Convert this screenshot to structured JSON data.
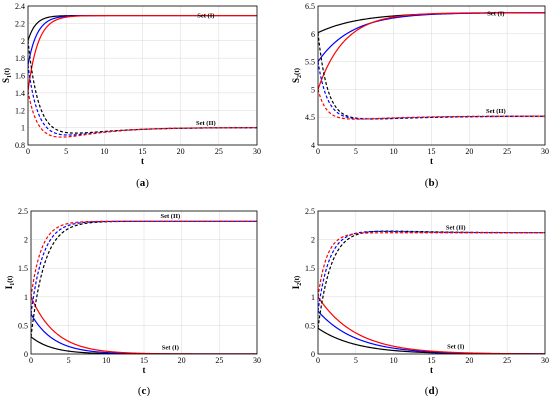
{
  "chart_data": [
    {
      "type": "line",
      "caption": {
        "open": "(",
        "letter": "a",
        "close": ")"
      },
      "xlabel": "t",
      "ylabel": "S",
      "ylabel_sub": "1",
      "ylabel_arg": "(t)",
      "xlim": [
        0,
        30
      ],
      "ylim": [
        0.8,
        2.4
      ],
      "xticks": [
        "0",
        "5",
        "10",
        "15",
        "20",
        "25",
        "30"
      ],
      "yticks": [
        "0.8",
        "1",
        "1.2",
        "1.4",
        "1.6",
        "1.8",
        "2",
        "2.2",
        "2.4"
      ],
      "grid": true,
      "annotations": [
        {
          "text": "Set (I)",
          "x": 23.3,
          "y": 2.27
        },
        {
          "text": "Set (II)",
          "x": 23.3,
          "y": 1.03
        }
      ],
      "series": [
        {
          "set": "I",
          "color": "#000000",
          "style": "solid",
          "y0": 2.0,
          "yEnd": 2.29,
          "peak": 2.0,
          "tpk": 0.01,
          "tau": 1.0
        },
        {
          "set": "I",
          "color": "#0000ff",
          "style": "solid",
          "y0": 1.72,
          "yEnd": 2.29,
          "peak": 1.72,
          "tpk": 0.01,
          "tau": 1.2
        },
        {
          "set": "I",
          "color": "#ff0000",
          "style": "solid",
          "y0": 1.42,
          "yEnd": 2.29,
          "peak": 1.42,
          "tpk": 0.01,
          "tau": 1.3
        },
        {
          "set": "II",
          "color": "#000000",
          "style": "dashed",
          "y0": 2.0,
          "yEnd": 1.0,
          "peak": 2.0,
          "tpk": 0.01,
          "tau": 1.3,
          "dip": 0.08,
          "tdip": 4.0
        },
        {
          "set": "II",
          "color": "#0000ff",
          "style": "dashed",
          "y0": 1.72,
          "yEnd": 1.0,
          "peak": 1.72,
          "tpk": 0.01,
          "tau": 1.2,
          "dip": 0.1,
          "tdip": 3.8
        },
        {
          "set": "II",
          "color": "#ff0000",
          "style": "dashed",
          "y0": 1.42,
          "yEnd": 1.0,
          "peak": 1.42,
          "tpk": 0.01,
          "tau": 1.1,
          "dip": 0.12,
          "tdip": 3.5
        }
      ]
    },
    {
      "type": "line",
      "caption": {
        "open": "(",
        "letter": "b",
        "close": ")"
      },
      "xlabel": "t",
      "ylabel": "S",
      "ylabel_sub": "2",
      "ylabel_arg": "(t)",
      "xlim": [
        0,
        30
      ],
      "ylim": [
        4,
        6.5
      ],
      "xticks": [
        "0",
        "5",
        "10",
        "15",
        "20",
        "25",
        "30"
      ],
      "yticks": [
        "4",
        "4.5",
        "5",
        "5.5",
        "6",
        "6.5"
      ],
      "grid": true,
      "annotations": [
        {
          "text": "Set (I)",
          "x": 23.5,
          "y": 6.33
        },
        {
          "text": "Set (II)",
          "x": 23.5,
          "y": 4.58
        }
      ],
      "series": [
        {
          "set": "I",
          "color": "#000000",
          "style": "solid",
          "y0": 6.02,
          "yEnd": 6.38,
          "peak": 6.02,
          "tpk": 0.01,
          "tau": 5.5
        },
        {
          "set": "I",
          "color": "#0000ff",
          "style": "solid",
          "y0": 5.5,
          "yEnd": 6.38,
          "peak": 5.5,
          "tpk": 0.01,
          "tau": 4.5
        },
        {
          "set": "I",
          "color": "#ff0000",
          "style": "solid",
          "y0": 5.0,
          "yEnd": 6.38,
          "peak": 5.0,
          "tpk": 0.01,
          "tau": 3.5
        },
        {
          "set": "II",
          "color": "#000000",
          "style": "dashed",
          "y0": 6.02,
          "yEnd": 4.52,
          "peak": 6.02,
          "tpk": 0.01,
          "tau": 1.2,
          "dip": 0.06,
          "tdip": 5.0
        },
        {
          "set": "II",
          "color": "#0000ff",
          "style": "dashed",
          "y0": 5.5,
          "yEnd": 4.52,
          "peak": 5.5,
          "tpk": 0.01,
          "tau": 1.2,
          "dip": 0.06,
          "tdip": 4.5
        },
        {
          "set": "II",
          "color": "#ff0000",
          "style": "dashed",
          "y0": 5.0,
          "yEnd": 4.52,
          "peak": 5.0,
          "tpk": 0.01,
          "tau": 1.0,
          "dip": 0.06,
          "tdip": 4.0
        }
      ]
    },
    {
      "type": "line",
      "caption": {
        "open": "(",
        "letter": "c",
        "close": ")"
      },
      "xlabel": "t",
      "ylabel": "I",
      "ylabel_sub": "1",
      "ylabel_arg": "(t)",
      "xlim": [
        0,
        30
      ],
      "ylim": [
        0,
        2.5
      ],
      "xticks": [
        "0",
        "5",
        "10",
        "15",
        "20",
        "25",
        "30"
      ],
      "yticks": [
        "0",
        "0.5",
        "1",
        "1.5",
        "2",
        "2.5"
      ],
      "grid": true,
      "annotations": [
        {
          "text": "Set (II)",
          "x": 18.5,
          "y": 2.38
        },
        {
          "text": "Set (I)",
          "x": 18.5,
          "y": 0.08
        }
      ],
      "series": [
        {
          "set": "I",
          "color": "#000000",
          "style": "solid",
          "y0": 0.3,
          "yEnd": 0.0,
          "peak": 0.3,
          "tpk": 0.01,
          "tau": 2.8
        },
        {
          "set": "I",
          "color": "#0000ff",
          "style": "solid",
          "y0": 0.7,
          "yEnd": 0.0,
          "peak": 0.7,
          "tpk": 0.01,
          "tau": 3.0
        },
        {
          "set": "I",
          "color": "#ff0000",
          "style": "solid",
          "y0": 1.0,
          "yEnd": 0.0,
          "peak": 1.0,
          "tpk": 0.01,
          "tau": 3.3
        },
        {
          "set": "II",
          "color": "#000000",
          "style": "dashed",
          "y0": 0.3,
          "yEnd": 2.32,
          "peak": 0.3,
          "tpk": 0.01,
          "tau": 1.8
        },
        {
          "set": "II",
          "color": "#0000ff",
          "style": "dashed",
          "y0": 0.7,
          "yEnd": 2.32,
          "peak": 0.7,
          "tpk": 0.01,
          "tau": 1.6
        },
        {
          "set": "II",
          "color": "#ff0000",
          "style": "dashed",
          "y0": 1.0,
          "yEnd": 2.32,
          "peak": 1.0,
          "tpk": 0.01,
          "tau": 1.4
        }
      ]
    },
    {
      "type": "line",
      "caption": {
        "open": "(",
        "letter": "d",
        "close": ")"
      },
      "xlabel": "t",
      "ylabel": "I",
      "ylabel_sub": "2",
      "ylabel_arg": "(t)",
      "xlim": [
        0,
        30
      ],
      "ylim": [
        0,
        2.5
      ],
      "xticks": [
        "0",
        "5",
        "10",
        "15",
        "20",
        "25",
        "30"
      ],
      "yticks": [
        "0",
        "0.5",
        "1",
        "1.5",
        "2",
        "2.5"
      ],
      "grid": true,
      "annotations": [
        {
          "text": "Set (II)",
          "x": 18.2,
          "y": 2.18
        },
        {
          "text": "Set (I)",
          "x": 18.2,
          "y": 0.1
        }
      ],
      "series": [
        {
          "set": "I",
          "color": "#000000",
          "style": "solid",
          "y0": 0.45,
          "yEnd": 0.0,
          "peak": 0.45,
          "tpk": 0.01,
          "tau": 5.0
        },
        {
          "set": "I",
          "color": "#0000ff",
          "style": "solid",
          "y0": 0.75,
          "yEnd": 0.0,
          "peak": 0.75,
          "tpk": 0.01,
          "tau": 5.0
        },
        {
          "set": "I",
          "color": "#ff0000",
          "style": "solid",
          "y0": 1.0,
          "yEnd": 0.0,
          "peak": 1.0,
          "tpk": 0.01,
          "tau": 5.0
        },
        {
          "set": "II",
          "color": "#000000",
          "style": "dashed",
          "y0": 0.45,
          "yEnd": 2.12,
          "peak": 0.45,
          "tpk": 0.01,
          "tau": 1.7,
          "over": 0.05,
          "tover": 4.5
        },
        {
          "set": "II",
          "color": "#0000ff",
          "style": "dashed",
          "y0": 0.75,
          "yEnd": 2.12,
          "peak": 0.75,
          "tpk": 0.01,
          "tau": 1.5,
          "over": 0.04,
          "tover": 4.0
        },
        {
          "set": "II",
          "color": "#ff0000",
          "style": "dashed",
          "y0": 1.0,
          "yEnd": 2.12,
          "peak": 1.0,
          "tpk": 0.01,
          "tau": 1.2,
          "over": 0.0,
          "tover": 4.0
        }
      ]
    }
  ]
}
